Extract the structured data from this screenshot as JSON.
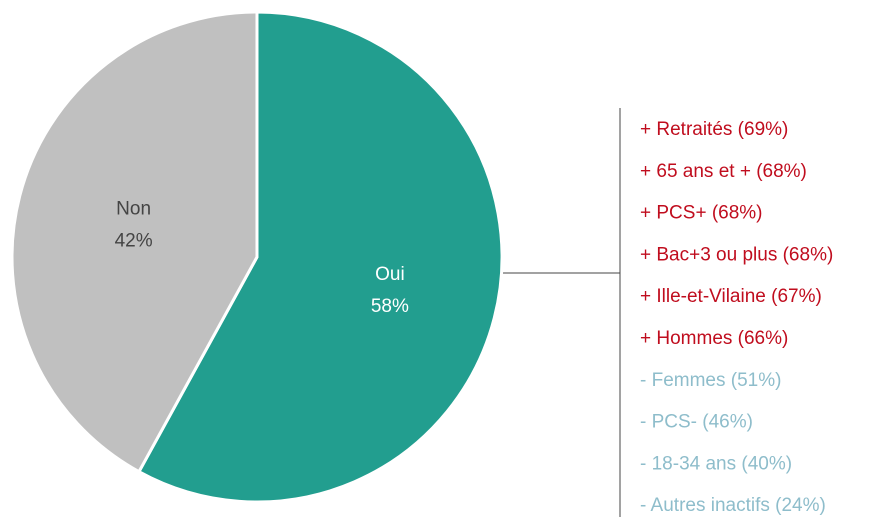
{
  "chart_data": {
    "type": "pie",
    "categories": [
      "Oui",
      "Non"
    ],
    "values": [
      58,
      42
    ],
    "value_labels": [
      "58%",
      "42%"
    ],
    "colors": [
      "#229e8f",
      "#c0c0c0"
    ],
    "annotations": {
      "positive": {
        "color": "#c00d1e",
        "items": [
          "+ Retraités (69%)",
          "+ 65 ans et + (68%)",
          "+ PCS+ (68%)",
          "+ Bac+3 ou plus (68%)",
          "+ Ille-et-Vilaine (67%)",
          "+ Hommes (66%)"
        ]
      },
      "negative": {
        "color": "#8ebdcb",
        "items": [
          "- Femmes (51%)",
          "- PCS- (46%)",
          "- 18-34 ans (40%)",
          "- Autres inactifs (24%)"
        ]
      }
    }
  }
}
